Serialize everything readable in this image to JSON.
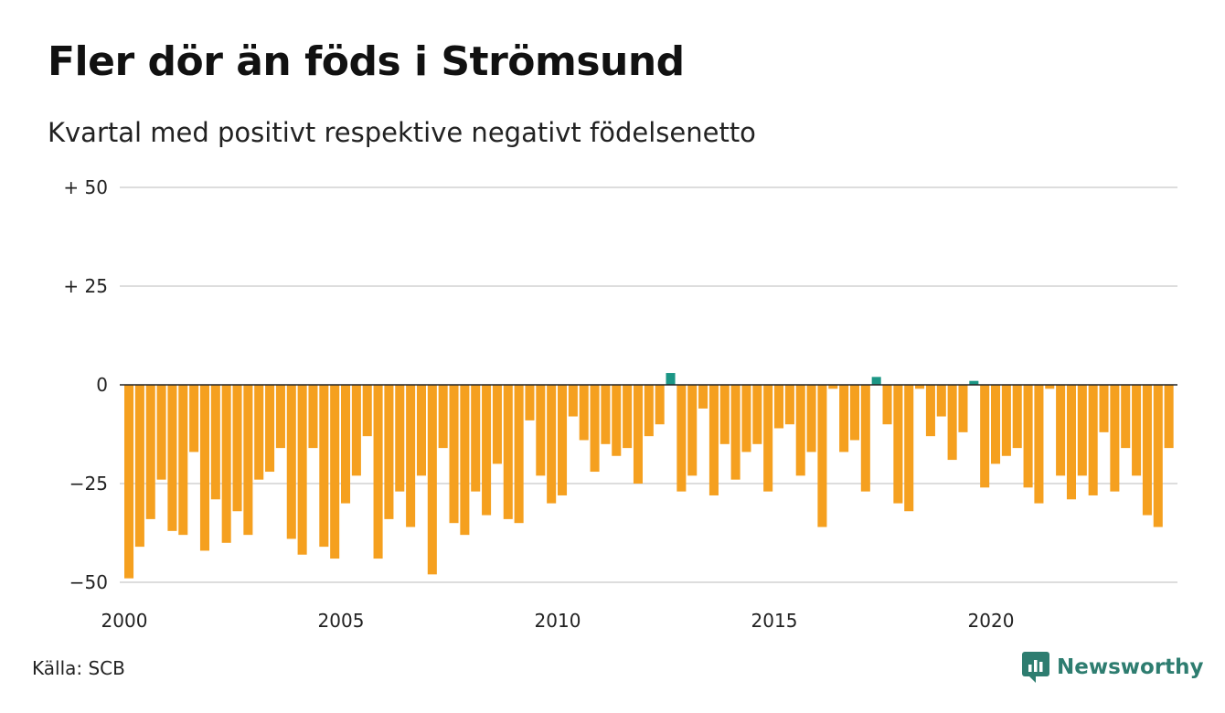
{
  "title": "Fler dör än föds i Strömsund",
  "subtitle": "Kvartal med positivt respektive negativt födelsenetto",
  "source": "Källa: SCB",
  "brand": "Newsworthy",
  "colors": {
    "negative": "#f5a01f",
    "positive": "#1b9685",
    "grid": "#dddddd",
    "zero_line": "#222222",
    "brand": "#2e7d70"
  },
  "chart_data": {
    "type": "bar",
    "title": "Fler dör än föds i Strömsund",
    "subtitle": "Kvartal med positivt respektive negativt födelsenetto",
    "xlabel": "",
    "ylabel": "",
    "ylim": [
      -50,
      50
    ],
    "yticks": [
      50,
      25,
      0,
      -25,
      -50
    ],
    "ytick_labels": [
      "+ 50",
      "+ 25",
      "0",
      "−25",
      "−50"
    ],
    "xtick_labels": [
      "2000",
      "2005",
      "2010",
      "2015",
      "2020"
    ],
    "grid": true,
    "start_year": 2000,
    "values": [
      -49,
      -41,
      -34,
      -24,
      -37,
      -38,
      -17,
      -42,
      -29,
      -40,
      -32,
      -38,
      -24,
      -22,
      -16,
      -39,
      -43,
      -16,
      -41,
      -44,
      -30,
      -23,
      -13,
      -44,
      -34,
      -27,
      -36,
      -23,
      -48,
      -16,
      -35,
      -38,
      -27,
      -33,
      -20,
      -34,
      -35,
      -9,
      -23,
      -30,
      -28,
      -8,
      -14,
      -22,
      -15,
      -18,
      -16,
      -25,
      -13,
      -10,
      3,
      -27,
      -23,
      -6,
      -28,
      -15,
      -24,
      -17,
      -15,
      -27,
      -11,
      -10,
      -23,
      -17,
      -36,
      -1,
      -17,
      -14,
      -27,
      2,
      -10,
      -30,
      -32,
      -1,
      -13,
      -8,
      -19,
      -12,
      1,
      -26,
      -20,
      -18,
      -16,
      -26,
      -30,
      -1,
      -23,
      -29,
      -23,
      -28,
      -12,
      -27,
      -16,
      -23,
      -33,
      -36,
      -16
    ]
  }
}
